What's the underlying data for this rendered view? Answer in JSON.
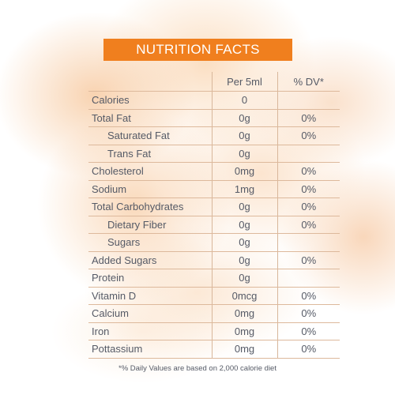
{
  "title": "NUTRITION FACTS",
  "header": {
    "per": "Per 5ml",
    "dv": "% DV*"
  },
  "rows": [
    {
      "name": "Calories",
      "value": "0",
      "dv": "",
      "indent": false
    },
    {
      "name": "Total Fat",
      "value": "0g",
      "dv": "0%",
      "indent": false
    },
    {
      "name": "Saturated Fat",
      "value": "0g",
      "dv": "0%",
      "indent": true
    },
    {
      "name": "Trans Fat",
      "value": "0g",
      "dv": "",
      "indent": true
    },
    {
      "name": "Cholesterol",
      "value": "0mg",
      "dv": "0%",
      "indent": false
    },
    {
      "name": "Sodium",
      "value": "1mg",
      "dv": "0%",
      "indent": false
    },
    {
      "name": "Total Carbohydrates",
      "value": "0g",
      "dv": "0%",
      "indent": false
    },
    {
      "name": "Dietary Fiber",
      "value": "0g",
      "dv": "0%",
      "indent": true
    },
    {
      "name": "Sugars",
      "value": "0g",
      "dv": "",
      "indent": true
    },
    {
      "name": "Added Sugars",
      "value": "0g",
      "dv": "0%",
      "indent": false
    },
    {
      "name": "Protein",
      "value": "0g",
      "dv": "",
      "indent": false
    },
    {
      "name": "Vitamin D",
      "value": "0mcg",
      "dv": "0%",
      "indent": false
    },
    {
      "name": "Calcium",
      "value": "0mg",
      "dv": "0%",
      "indent": false
    },
    {
      "name": "Iron",
      "value": "0mg",
      "dv": "0%",
      "indent": false
    },
    {
      "name": "Pottassium",
      "value": "0mg",
      "dv": "0%",
      "indent": false
    }
  ],
  "footnote": "*% Daily Values are based on 2,000 calorie diet",
  "colors": {
    "title_bg": "#f07f1e",
    "text": "#555a66",
    "rule": "#ddb99c"
  }
}
